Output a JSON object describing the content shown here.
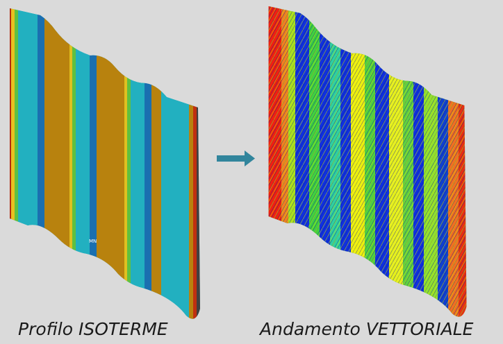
{
  "left_caption": "Profilo ISOTERME",
  "right_caption": "Andamento VETTORIALE",
  "left_image_label": "MN"
}
